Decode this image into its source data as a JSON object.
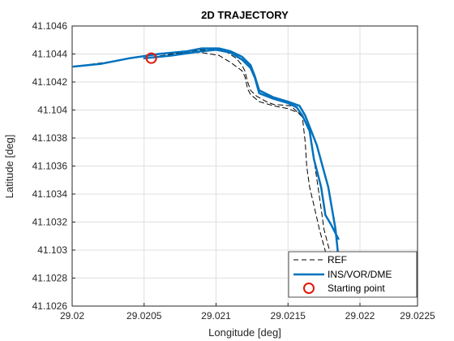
{
  "chart_data": {
    "type": "line",
    "title": "2D TRAJECTORY",
    "xlabel": "Longitude [deg]",
    "ylabel": "Latitude [deg]",
    "xlim": [
      29.0201,
      29.0225
    ],
    "ylim": [
      41.1026,
      41.1046
    ],
    "xticks": [
      "29.02",
      "29.0205",
      "29.021",
      "29.0215",
      "29.022",
      "29.0225"
    ],
    "xtick_values": [
      29.0201,
      29.0206,
      29.0211,
      29.0216,
      29.0221,
      29.0225
    ],
    "yticks": [
      "41.1046",
      "41.1044",
      "41.1042",
      "41.104",
      "41.1038",
      "41.1036",
      "41.1034",
      "41.1032",
      "41.103",
      "41.1028",
      "41.1026"
    ],
    "ytick_values": [
      41.1046,
      41.1044,
      41.1042,
      41.104,
      41.1038,
      41.1036,
      41.1034,
      41.1032,
      41.103,
      41.1028,
      41.1026
    ],
    "grid": true,
    "legend_position": "bottom-right",
    "colors": {
      "ref": "#000000",
      "ins": "#0072BD",
      "start": "#e3170a",
      "grid": "#dfdfdf"
    },
    "series": [
      {
        "name": "REF",
        "style": "dashed",
        "x": [
          29.02011,
          29.0204,
          29.0207,
          29.0209,
          29.021,
          29.02112,
          29.0212,
          29.02128,
          29.0213,
          29.02132,
          29.02134,
          29.0214,
          29.0215,
          29.0216,
          29.02172,
          29.02175,
          29.02178,
          29.02182,
          29.02185,
          29.02188,
          29.02191
        ],
        "y": [
          41.10431,
          41.10435,
          41.1044,
          41.10441,
          41.10441,
          41.10439,
          41.10434,
          41.10428,
          41.10424,
          41.10415,
          41.10411,
          41.10406,
          41.10403,
          41.10401,
          41.10396,
          41.10385,
          41.10365,
          41.10337,
          41.10315,
          41.10303,
          41.10293
        ]
      },
      {
        "name": "REF",
        "style": "dashed",
        "x": [
          29.0206,
          29.0208,
          29.021,
          29.0211,
          29.02118,
          29.02124,
          29.02128,
          29.0213,
          29.02132,
          29.02134,
          29.02138,
          29.02145,
          29.0215,
          29.02162,
          29.0217,
          29.02172,
          29.02173,
          29.02175,
          29.02178,
          29.02182,
          29.02186
        ],
        "y": [
          41.10437,
          41.1044,
          41.10443,
          41.10443,
          41.10441,
          41.10437,
          41.10432,
          41.10428,
          41.1042,
          41.10414,
          41.1041,
          41.10406,
          41.10404,
          41.10403,
          41.10395,
          41.10377,
          41.1036,
          41.10345,
          41.10332,
          41.10314,
          41.10299
        ]
      },
      {
        "name": "INS/VOR/DME",
        "style": "solid",
        "x": [
          29.02011,
          29.0203,
          29.0205,
          29.0207,
          29.0209,
          29.021,
          29.02112,
          29.0212,
          29.02128,
          29.02134,
          29.02137,
          29.0214,
          29.0215,
          29.0216,
          29.02168,
          29.02172,
          29.0218,
          29.02188,
          29.02193,
          29.02195,
          29.02193
        ],
        "y": [
          41.10431,
          41.10433,
          41.10437,
          41.1044,
          41.10442,
          41.10444,
          41.10444,
          41.10442,
          41.10438,
          41.10432,
          41.10424,
          41.10414,
          41.10409,
          41.10406,
          41.10403,
          41.10396,
          41.10375,
          41.10345,
          41.10315,
          41.10295,
          41.10289
        ]
      },
      {
        "name": "INS/VOR/DME",
        "style": "solid",
        "x": [
          29.0206,
          29.0208,
          29.021,
          29.0211,
          29.0212,
          29.02128,
          29.02134,
          29.02137,
          29.0214,
          29.0215,
          29.0216,
          29.02166,
          29.0217,
          29.02175,
          29.02178,
          29.02183,
          29.02186,
          29.0219,
          29.02195
        ],
        "y": [
          41.10437,
          41.10439,
          41.10442,
          41.10443,
          41.10441,
          41.10436,
          41.1043,
          41.10423,
          41.10412,
          41.10408,
          41.10405,
          41.10402,
          41.10396,
          41.10385,
          41.10365,
          41.10345,
          41.10325,
          41.10318,
          41.10308
        ]
      }
    ],
    "starting_point": {
      "x": 29.02065,
      "y": 41.10437
    },
    "legend": [
      {
        "label": "REF",
        "kind": "dashed"
      },
      {
        "label": "INS/VOR/DME",
        "kind": "solid"
      },
      {
        "label": "Starting point",
        "kind": "circle"
      }
    ]
  }
}
